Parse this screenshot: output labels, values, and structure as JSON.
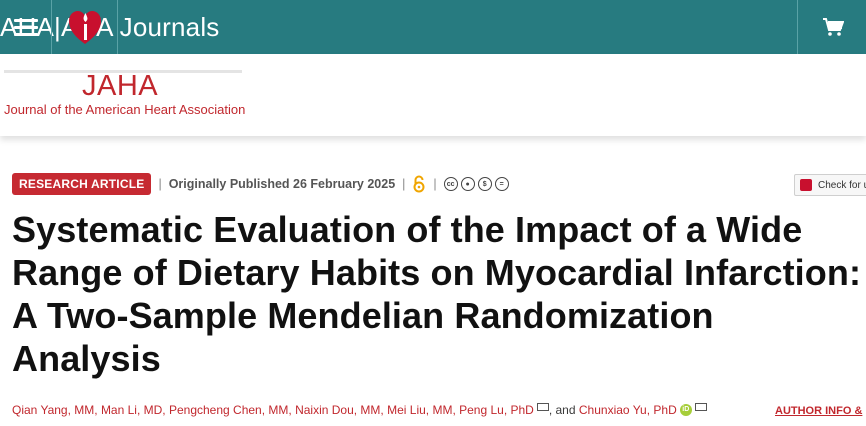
{
  "topbar": {
    "menu_icon": "hamburger-menu-icon",
    "logo_icon": "heart-torch-logo",
    "site_title": "AHA|ASA Journals",
    "cart_icon": "shopping-cart-icon"
  },
  "journal": {
    "abbr": "JAHA",
    "full_name": "Journal of the American Heart Association"
  },
  "meta": {
    "badge": "RESEARCH ARTICLE",
    "published": "Originally Published 26 February 2025",
    "open_access_icon": "open-access-icon",
    "license_icons": [
      "cc-icon",
      "by-icon",
      "nc-icon",
      "nd-icon"
    ]
  },
  "check_for_updates": "Check for u",
  "article": {
    "title": "Systematic Evaluation of the Impact of a Wide Range of Dietary Habits on Myocardial Infarction: A Two-Sample Mendelian Randomization Analysis"
  },
  "authors": {
    "list": [
      "Qian Yang, MM,",
      "Man Li, MD,",
      "Pengcheng Chen, MM,",
      "Naixin Dou, MM,",
      "Mei Liu, MM,",
      "Peng Lu, PhD"
    ],
    "and": ", and",
    "last": "Chunxiao Yu, PhD",
    "author_info": "AUTHOR INFO &"
  },
  "colors": {
    "topbar": "#277b80",
    "brand_red": "#c1272d",
    "badge_red": "#c62a32"
  }
}
